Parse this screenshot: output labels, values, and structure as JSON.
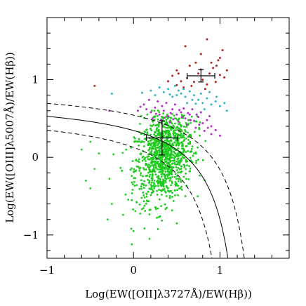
{
  "chart_data": {
    "type": "scatter",
    "title": "",
    "xlabel": "Log(EW([OII]λ3727Å)/EW(Hβ))",
    "ylabel": "Log(EW([OIII]λ5007Å)/EW(Hβ))",
    "xlim": [
      -1.0,
      1.8
    ],
    "ylim": [
      -1.3,
      1.8
    ],
    "x_ticks": [
      {
        "value": -1,
        "label": "−1"
      },
      {
        "value": 0,
        "label": "0"
      },
      {
        "value": 1,
        "label": "1"
      }
    ],
    "y_ticks": [
      {
        "value": -1,
        "label": "−1"
      },
      {
        "value": 0,
        "label": "0"
      },
      {
        "value": 1,
        "label": "1"
      }
    ],
    "grid": false,
    "legend": "none",
    "colors": {
      "above_outer_curve": "#b22222",
      "between_upper_curves": "#33b5c9",
      "between_inner_curves": "#b62dc9",
      "below_curves": "#1ecb1e",
      "curves": "#000000"
    },
    "series": [
      {
        "color": "#b22222",
        "points": [
          [
            0.85,
            1.52
          ],
          [
            0.6,
            1.43
          ],
          [
            0.78,
            1.33
          ],
          [
            1.03,
            1.38
          ],
          [
            1.0,
            1.28
          ],
          [
            0.9,
            1.22
          ],
          [
            0.5,
            1.12
          ],
          [
            0.45,
            1.05
          ],
          [
            0.62,
            1.02
          ],
          [
            0.55,
            0.98
          ],
          [
            0.7,
            0.97
          ],
          [
            0.8,
            1.0
          ],
          [
            0.85,
            0.94
          ],
          [
            0.95,
            0.97
          ],
          [
            0.75,
            1.08
          ],
          [
            1.0,
            1.06
          ],
          [
            1.08,
            1.12
          ],
          [
            0.88,
            1.08
          ],
          [
            0.67,
            0.92
          ],
          [
            0.58,
            0.9
          ],
          [
            0.5,
            0.93
          ],
          [
            0.78,
            1.13
          ],
          [
            0.96,
            1.18
          ],
          [
            0.72,
            1.22
          ],
          [
            0.65,
            1.18
          ],
          [
            -0.45,
            0.92
          ],
          [
            0.4,
            0.98
          ],
          [
            0.52,
            1.08
          ],
          [
            1.05,
            1.03
          ],
          [
            0.83,
            0.88
          ],
          [
            0.92,
            1.15
          ],
          [
            0.98,
            1.25
          ]
        ]
      },
      {
        "color": "#33b5c9",
        "points": [
          [
            0.2,
            0.86
          ],
          [
            0.35,
            0.84
          ],
          [
            0.4,
            0.88
          ],
          [
            0.5,
            0.8
          ],
          [
            0.55,
            0.82
          ],
          [
            0.6,
            0.78
          ],
          [
            0.65,
            0.85
          ],
          [
            0.7,
            0.8
          ],
          [
            0.75,
            0.74
          ],
          [
            0.8,
            0.7
          ],
          [
            0.85,
            0.76
          ],
          [
            0.9,
            0.68
          ],
          [
            0.95,
            0.72
          ],
          [
            1.0,
            0.66
          ],
          [
            1.05,
            0.7
          ],
          [
            0.45,
            0.78
          ],
          [
            0.3,
            0.9
          ],
          [
            0.25,
            0.8
          ],
          [
            -0.25,
            0.82
          ],
          [
            0.1,
            0.83
          ],
          [
            0.68,
            0.74
          ],
          [
            0.78,
            0.82
          ],
          [
            0.88,
            0.84
          ],
          [
            0.58,
            0.88
          ],
          [
            0.42,
            0.81
          ],
          [
            0.72,
            0.69
          ],
          [
            0.62,
            0.7
          ],
          [
            0.96,
            0.78
          ],
          [
            0.52,
            0.86
          ],
          [
            0.82,
            0.62
          ],
          [
            1.08,
            0.6
          ],
          [
            0.48,
            0.92
          ]
        ]
      },
      {
        "color": "#b62dc9",
        "points": [
          [
            0.15,
            0.62
          ],
          [
            0.2,
            0.58
          ],
          [
            0.25,
            0.64
          ],
          [
            0.3,
            0.55
          ],
          [
            0.35,
            0.6
          ],
          [
            0.4,
            0.53
          ],
          [
            0.45,
            0.62
          ],
          [
            0.5,
            0.55
          ],
          [
            0.55,
            0.58
          ],
          [
            0.6,
            0.5
          ],
          [
            0.65,
            0.55
          ],
          [
            0.7,
            0.47
          ],
          [
            0.75,
            0.52
          ],
          [
            0.8,
            0.44
          ],
          [
            0.85,
            0.48
          ],
          [
            0.9,
            0.4
          ],
          [
            0.12,
            0.68
          ],
          [
            0.28,
            0.72
          ],
          [
            0.38,
            0.7
          ],
          [
            0.48,
            0.68
          ],
          [
            0.58,
            0.63
          ],
          [
            0.68,
            0.62
          ],
          [
            0.78,
            0.58
          ],
          [
            0.88,
            0.53
          ],
          [
            0.22,
            0.5
          ],
          [
            0.32,
            0.48
          ],
          [
            0.42,
            0.45
          ],
          [
            0.52,
            0.46
          ],
          [
            0.62,
            0.42
          ],
          [
            0.72,
            0.38
          ],
          [
            0.82,
            0.34
          ],
          [
            0.9,
            0.3
          ],
          [
            1.0,
            0.28
          ],
          [
            0.95,
            0.35
          ],
          [
            -0.28,
            0.6
          ],
          [
            0.05,
            0.6
          ],
          [
            0.18,
            0.74
          ],
          [
            0.33,
            0.66
          ],
          [
            0.43,
            0.57
          ],
          [
            0.53,
            0.61
          ],
          [
            0.63,
            0.57
          ],
          [
            0.73,
            0.55
          ],
          [
            0.26,
            0.56
          ],
          [
            0.36,
            0.51
          ],
          [
            0.46,
            0.49
          ],
          [
            0.56,
            0.52
          ],
          [
            0.66,
            0.48
          ],
          [
            0.76,
            0.42
          ],
          [
            0.86,
            0.38
          ],
          [
            0.08,
            0.65
          ]
        ]
      }
    ],
    "error_bars": [
      {
        "x": 0.33,
        "y": 0.25,
        "xerr": 0.18,
        "yerr": 0.22,
        "label": "mean-error-bar-centre"
      },
      {
        "x": 0.78,
        "y": 1.05,
        "xerr": 0.16,
        "yerr": 0.08,
        "label": "mean-error-bar-corner"
      }
    ],
    "curves": [
      {
        "style": "solid",
        "a": 0.78,
        "b": 1.38,
        "c": 0.6
      },
      {
        "style": "dashed",
        "a": 0.93,
        "b": 1.55,
        "c": 0.6
      },
      {
        "style": "dashed",
        "a": 0.62,
        "b": 1.22,
        "c": 0.6
      }
    ]
  }
}
